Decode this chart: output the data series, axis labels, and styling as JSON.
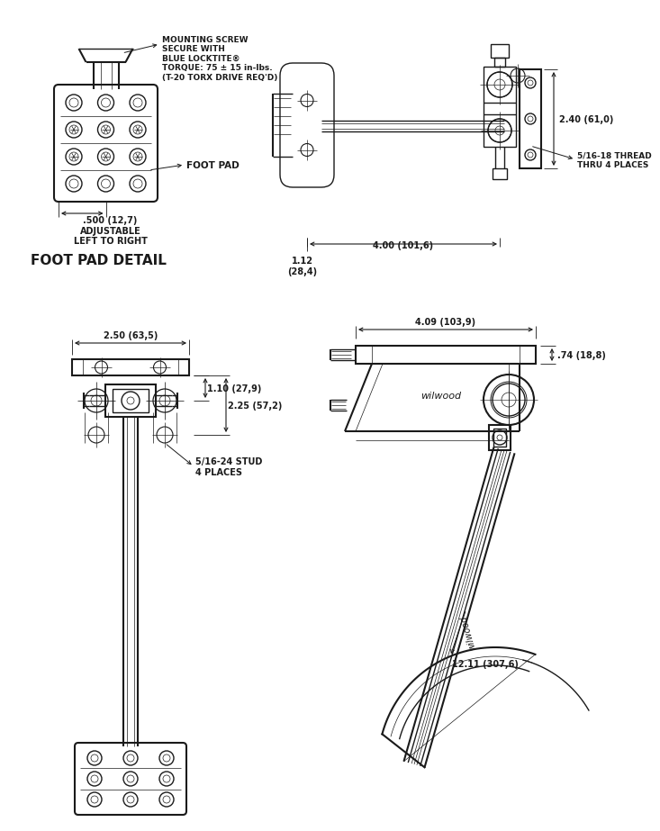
{
  "bg_color": "#ffffff",
  "line_color": "#1a1a1a",
  "annotations": {
    "mounting_screw": "MOUNTING SCREW\nSECURE WITH\nBLUE LOCKTITE®\nTORQUE: 75 ± 15 in-lbs.\n(T-20 TORX DRIVE REQ'D)",
    "foot_pad": "FOOT PAD",
    "foot_pad_detail": "FOOT PAD DETAIL",
    "adjustable": ".500 (12,7)\nADJUSTABLE\nLEFT TO RIGHT",
    "dim_240": "2.40 (61,0)",
    "thread": "5/16-18 THREAD\nTHRU 4 PLACES",
    "dim_112": "1.12\n(28,4)",
    "dim_400": "4.00 (101,6)",
    "dim_250": "2.50 (63,5)",
    "dim_110": "1.10 (27,9)",
    "dim_225": "2.25 (57,2)",
    "stud": "5/16-24 STUD\n4 PLACES",
    "dim_409": "4.09 (103,9)",
    "dim_074": ".74 (18,8)",
    "dim_1211": "12.11 (307,6)"
  },
  "lw": 1.0,
  "lw2": 1.5,
  "lw_t": 0.5
}
